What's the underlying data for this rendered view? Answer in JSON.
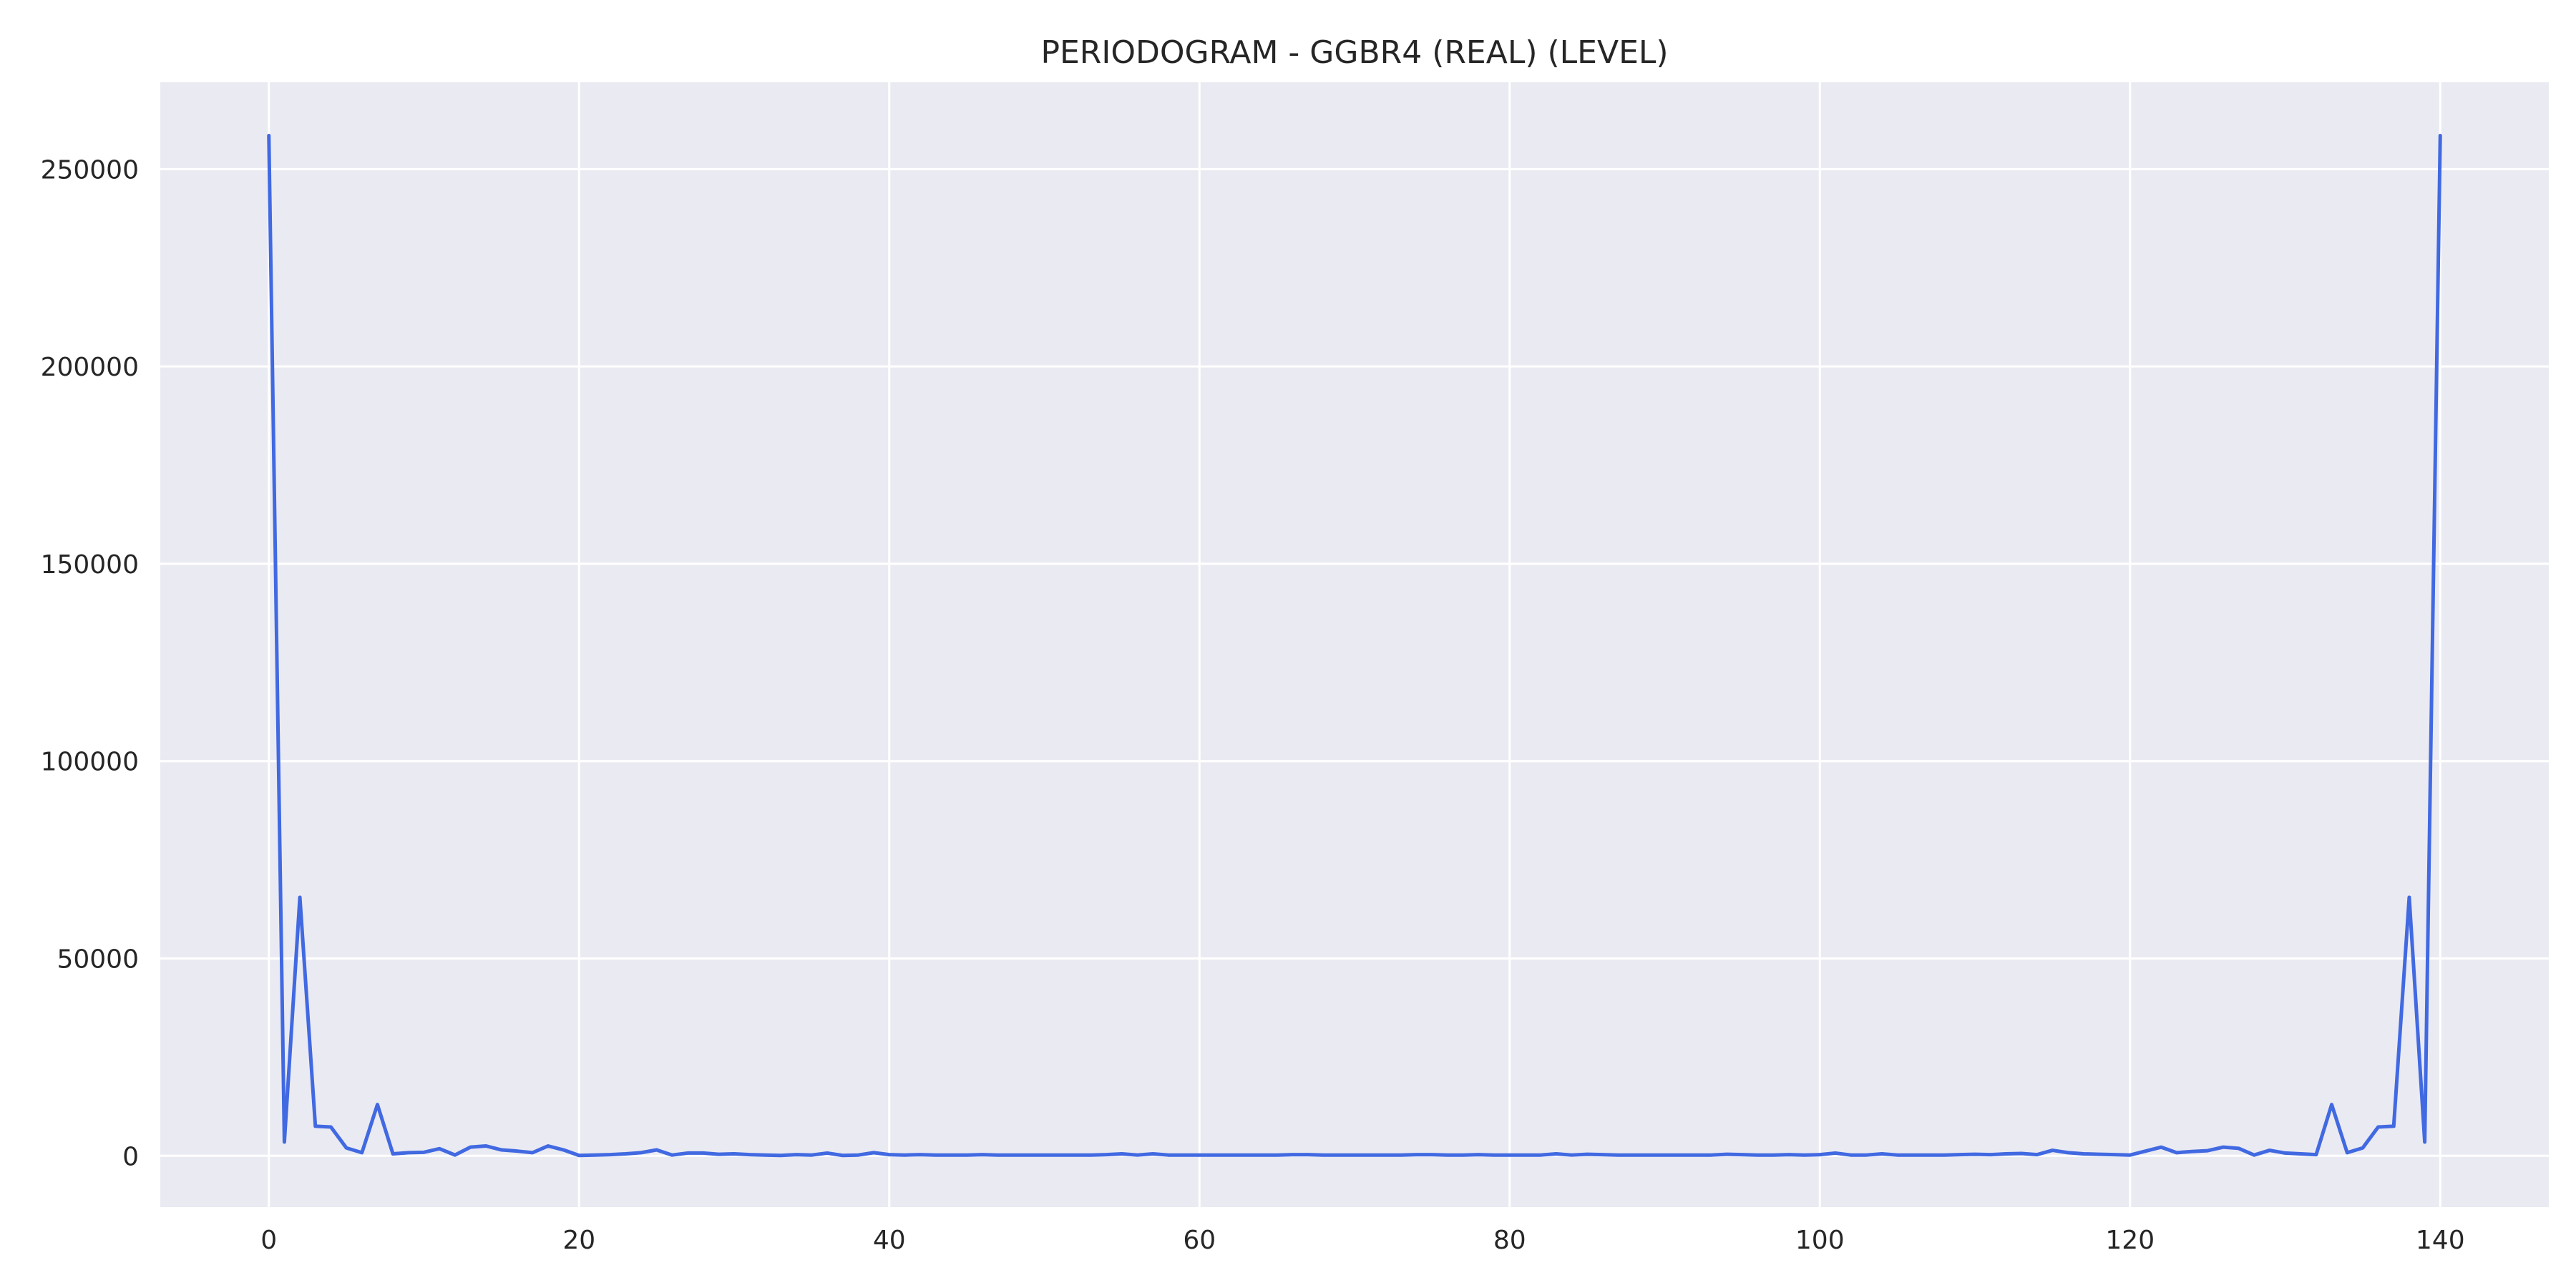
{
  "chart_data": {
    "type": "line",
    "title": "PERIODOGRAM - GGBR4 (REAL) (LEVEL)",
    "xlabel": "",
    "ylabel": "",
    "xlim": [
      -7,
      147
    ],
    "ylim": [
      -13000,
      272000
    ],
    "x_ticks": [
      0,
      20,
      40,
      60,
      80,
      100,
      120,
      140
    ],
    "y_ticks": [
      0,
      50000,
      100000,
      150000,
      200000,
      250000
    ],
    "x_tick_labels": [
      "0",
      "20",
      "40",
      "60",
      "80",
      "100",
      "120",
      "140"
    ],
    "y_tick_labels": [
      "0",
      "50000",
      "100000",
      "150000",
      "200000",
      "250000"
    ],
    "grid": true,
    "background": "#eaeaf2",
    "grid_color": "#ffffff",
    "line_color": "#4169e1",
    "series": [
      {
        "x": [
          0,
          1,
          2,
          3,
          4,
          5,
          6,
          7,
          8,
          9,
          10,
          11,
          12,
          13,
          14,
          15,
          16,
          17,
          18,
          19,
          20,
          21,
          22,
          23,
          24,
          25,
          26,
          27,
          28,
          29,
          30,
          31,
          32,
          33,
          34,
          35,
          36,
          37,
          38,
          39,
          40,
          41,
          42,
          43,
          44,
          45,
          46,
          47,
          48,
          49,
          50,
          51,
          52,
          53,
          54,
          55,
          56,
          57,
          58,
          59,
          60,
          61,
          62,
          63,
          64,
          65,
          66,
          67,
          68,
          69,
          70,
          71,
          72,
          73,
          74,
          75,
          76,
          77,
          78,
          79,
          80,
          81,
          82,
          83,
          84,
          85,
          86,
          87,
          88,
          89,
          90,
          91,
          92,
          93,
          94,
          95,
          96,
          97,
          98,
          99,
          100,
          101,
          102,
          103,
          104,
          105,
          106,
          107,
          108,
          109,
          110,
          111,
          112,
          113,
          114,
          115,
          116,
          117,
          118,
          119,
          120,
          121,
          122,
          123,
          124,
          125,
          126,
          127,
          128,
          129,
          130,
          131,
          132,
          133,
          134,
          135,
          136,
          137,
          138,
          139,
          140
        ],
        "y": [
          258500,
          3500,
          65500,
          7500,
          7300,
          2000,
          800,
          13000,
          500,
          800,
          900,
          1800,
          200,
          2200,
          2500,
          1500,
          1200,
          800,
          2500,
          1500,
          100,
          200,
          300,
          500,
          800,
          1500,
          200,
          700,
          700,
          400,
          500,
          300,
          200,
          100,
          300,
          200,
          700,
          100,
          200,
          800,
          300,
          200,
          300,
          200,
          200,
          200,
          300,
          200,
          200,
          200,
          200,
          200,
          200,
          200,
          300,
          500,
          200,
          500,
          200,
          200,
          200,
          200,
          200,
          200,
          200,
          200,
          300,
          300,
          200,
          200,
          200,
          200,
          200,
          200,
          300,
          300,
          200,
          200,
          300,
          200,
          200,
          200,
          200,
          500,
          200,
          400,
          300,
          200,
          200,
          200,
          200,
          200,
          200,
          200,
          400,
          300,
          200,
          200,
          300,
          200,
          300,
          700,
          200,
          200,
          500,
          200,
          200,
          200,
          200,
          300,
          400,
          300,
          500,
          600,
          300,
          1400,
          800,
          500,
          400,
          300,
          200,
          1200,
          2200,
          800,
          1100,
          1300,
          2200,
          1900,
          200,
          1400,
          700,
          500,
          300,
          13000,
          800,
          2000,
          7300,
          7500,
          65500,
          3500,
          258500
        ]
      }
    ]
  }
}
